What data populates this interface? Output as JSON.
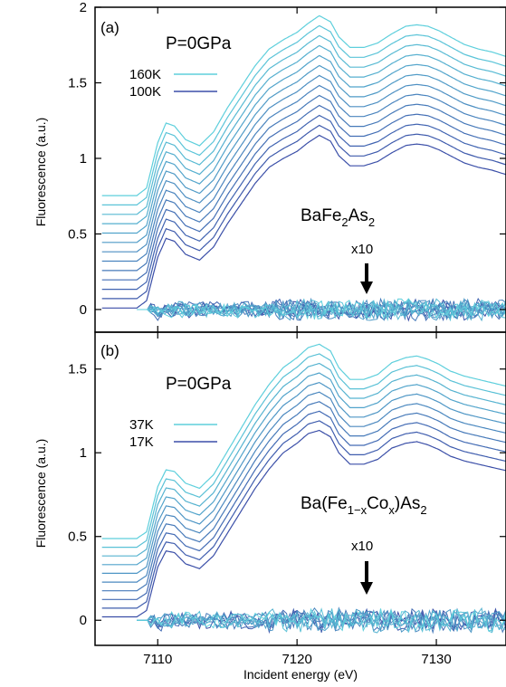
{
  "chart_data": [
    {
      "type": "line",
      "panel_label": "(a)",
      "pressure_label": "P=0GPa",
      "compound": {
        "base": "BaFe",
        "sub1": "2",
        "mid": "As",
        "sub2": "2"
      },
      "annotation": "x10",
      "ylabel": "Fluorescence (a.u.)",
      "xlim": [
        7105.5,
        7135
      ],
      "ylim": [
        -0.15,
        2.0
      ],
      "yticks": [
        "0",
        "0.5",
        "1",
        "1.5",
        "2"
      ],
      "ytick_values": [
        0,
        0.5,
        1,
        1.5,
        2
      ],
      "legend": [
        {
          "label": "160K",
          "color": "#5ecfdc"
        },
        {
          "label": "100K",
          "color": "#3b4fa8"
        }
      ],
      "n_spectra": 13,
      "vertical_offset_step": 0.062,
      "difference_scale": 10,
      "colors": {
        "hot": "#5ecfdc",
        "cold": "#3b4fa8"
      },
      "spectrum_shape": {
        "x": [
          7106,
          7108.5,
          7109.2,
          7110,
          7110.6,
          7111.2,
          7112,
          7113,
          7114,
          7115,
          7116,
          7117,
          7118,
          7119,
          7120,
          7120.8,
          7121.6,
          7122.4,
          7123,
          7123.8,
          7124.8,
          7125.8,
          7126.8,
          7127.8,
          7128.6,
          7129.4,
          7130.2,
          7131,
          7132,
          7133,
          7134,
          7135
        ],
        "y": [
          0,
          0,
          0.05,
          0.35,
          0.48,
          0.46,
          0.37,
          0.33,
          0.42,
          0.58,
          0.72,
          0.86,
          0.97,
          1.03,
          1.08,
          1.14,
          1.19,
          1.15,
          1.05,
          0.98,
          0.98,
          1.01,
          1.07,
          1.12,
          1.13,
          1.12,
          1.09,
          1.05,
          1.0,
          0.97,
          0.95,
          0.92
        ]
      },
      "base_offset_bottom": 0.01
    },
    {
      "type": "line",
      "panel_label": "(b)",
      "pressure_label": "P=0GPa",
      "compound": {
        "base": "Ba(Fe",
        "sub1": "1−x",
        "mid": "Co",
        "sub2": "x",
        "tail": ")As",
        "sub3": "2"
      },
      "annotation": "x10",
      "ylabel": "Fluorescence (a.u.)",
      "xlabel": "Incident energy (eV)",
      "xlim": [
        7105.5,
        7135
      ],
      "xticks": [
        "7110",
        "7120",
        "7130"
      ],
      "xtick_values": [
        7110,
        7120,
        7130
      ],
      "ylim": [
        -0.15,
        1.72
      ],
      "yticks": [
        "0",
        "0.5",
        "1",
        "1.5"
      ],
      "ytick_values": [
        0,
        0.5,
        1,
        1.5
      ],
      "legend": [
        {
          "label": "37K",
          "color": "#5ecfdc"
        },
        {
          "label": "17K",
          "color": "#3b4fa8"
        }
      ],
      "n_spectra": 10,
      "vertical_offset_step": 0.052,
      "difference_scale": 10,
      "colors": {
        "hot": "#5ecfdc",
        "cold": "#3b4fa8"
      },
      "spectrum_shape": {
        "x": [
          7106,
          7108.5,
          7109.2,
          7110,
          7110.6,
          7111.2,
          7112,
          7113,
          7114,
          7115,
          7116,
          7117,
          7118,
          7119,
          7120,
          7120.8,
          7121.6,
          7122.4,
          7123,
          7123.8,
          7124.8,
          7125.8,
          7126.8,
          7127.8,
          7128.6,
          7129.4,
          7130.2,
          7131,
          7132,
          7133,
          7134,
          7135
        ],
        "y": [
          0,
          0,
          0.04,
          0.31,
          0.41,
          0.4,
          0.33,
          0.3,
          0.38,
          0.52,
          0.66,
          0.8,
          0.92,
          1.02,
          1.08,
          1.14,
          1.16,
          1.12,
          1.02,
          0.95,
          0.95,
          0.98,
          1.05,
          1.08,
          1.09,
          1.07,
          1.04,
          1.0,
          0.97,
          0.95,
          0.93,
          0.91
        ]
      },
      "base_offset_bottom": 0.02
    }
  ]
}
